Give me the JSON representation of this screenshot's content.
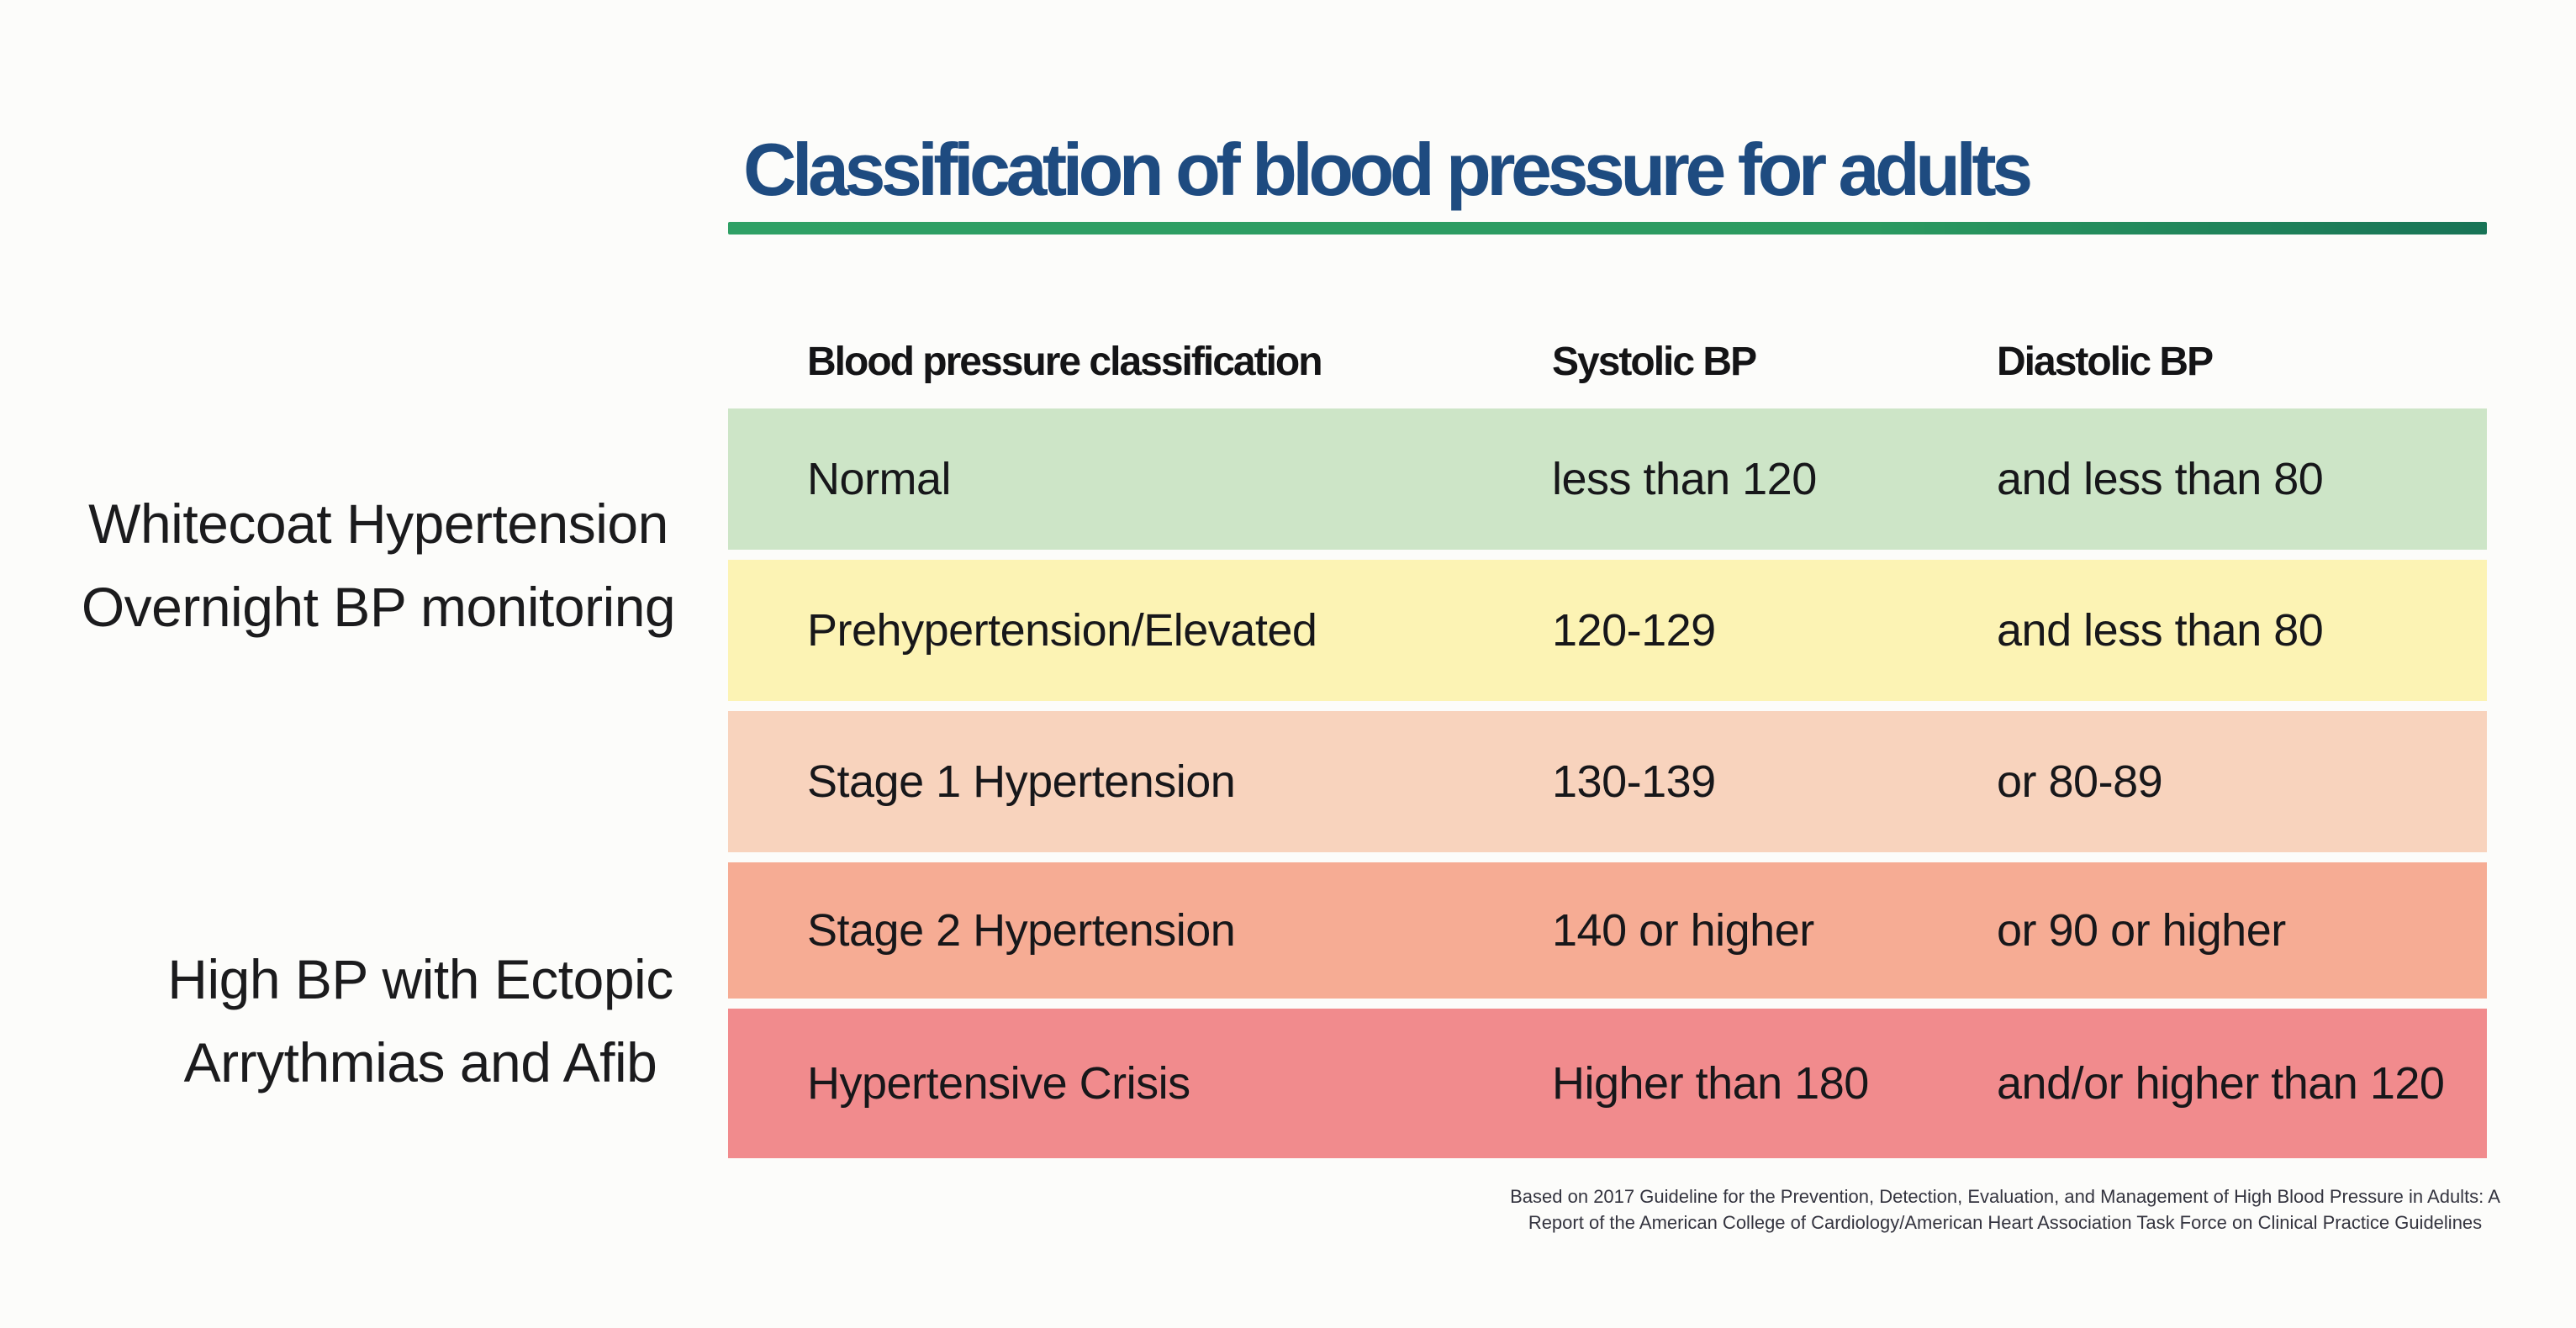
{
  "title": "Classification of blood pressure for adults",
  "table": {
    "headers": {
      "classification": "Blood pressure classification",
      "systolic": "Systolic BP",
      "diastolic": "Diastolic BP"
    },
    "rows": [
      {
        "classification": "Normal",
        "systolic": "less than 120",
        "diastolic": "and less than 80",
        "color": "#cde5c7"
      },
      {
        "classification": "Prehypertension/Elevated",
        "systolic": "120-129",
        "diastolic": "and less than 80",
        "color": "#fcf3b4"
      },
      {
        "classification": "Stage 1 Hypertension",
        "systolic": "130-139",
        "diastolic": "or 80-89",
        "color": "#f8d3bd"
      },
      {
        "classification": "Stage 2 Hypertension",
        "systolic": "140 or higher",
        "diastolic": "or 90 or higher",
        "color": "#f6ac94"
      },
      {
        "classification": "Hypertensive Crisis",
        "systolic": "Higher than 180",
        "diastolic": "and/or higher than 120",
        "color": "#f18b8d"
      }
    ]
  },
  "annotations": {
    "whitecoat_line1": "Whitecoat Hypertension",
    "whitecoat_line2": "Overnight BP monitoring",
    "ectopic_line1": "High BP with Ectopic",
    "ectopic_line2": "Arrythmias and Afib"
  },
  "source": {
    "line1": "Based on 2017 Guideline for the Prevention, Detection, Evaluation, and Management of High Blood Pressure in Adults: A",
    "line2": "Report of the American College of Cardiology/American Heart Association Task Force on Clinical Practice Guidelines"
  },
  "colors": {
    "title_navy": "#1e4b80",
    "rule_green": "#2b9a60",
    "row_normal_green": "#cde5c7",
    "row_elevated_yellow": "#fcf3b4",
    "row_stage1_peach": "#f8d3bd",
    "row_stage2_salmon": "#f6ac94",
    "row_crisis_red": "#f18b8d"
  },
  "chart_data": {
    "type": "table",
    "title": "Classification of blood pressure for adults",
    "columns": [
      "Blood pressure classification",
      "Systolic BP",
      "Diastolic BP"
    ],
    "rows": [
      [
        "Normal",
        "less than 120",
        "and less than 80"
      ],
      [
        "Prehypertension/Elevated",
        "120-129",
        "and less than 80"
      ],
      [
        "Stage 1 Hypertension",
        "130-139",
        "or 80-89"
      ],
      [
        "Stage 2 Hypertension",
        "140 or higher",
        "or 90 or higher"
      ],
      [
        "Hypertensive Crisis",
        "Higher than 180",
        "and/or higher than 120"
      ]
    ],
    "row_colors": [
      "#cde5c7",
      "#fcf3b4",
      "#f8d3bd",
      "#f6ac94",
      "#f18b8d"
    ],
    "annotations": [
      "Whitecoat Hypertension Overnight BP monitoring",
      "High BP with Ectopic Arrythmias and Afib"
    ],
    "legend_position": "none",
    "grid": false
  }
}
